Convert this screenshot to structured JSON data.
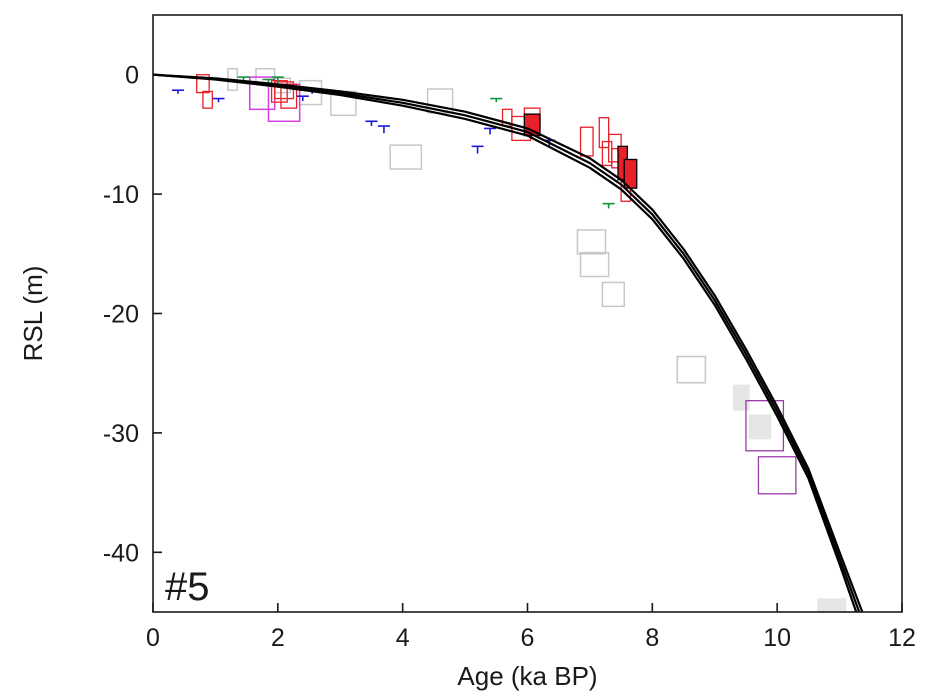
{
  "chart_data": {
    "type": "scatter",
    "panel_label": "#5",
    "xlabel": "Age (ka BP)",
    "ylabel": "RSL (m)",
    "xlim": [
      0,
      12
    ],
    "ylim": [
      -45,
      5
    ],
    "xticks": [
      0,
      2,
      4,
      6,
      8,
      10,
      12
    ],
    "yticks": [
      0,
      -10,
      -20,
      -30,
      -40
    ],
    "grid": false,
    "colors": {
      "model": "#000000",
      "gray": "#c8c8c8",
      "gray_fill": "#e6e6e6",
      "red": "#e8202a",
      "magenta": "#d63fe0",
      "purple": "#9a3aa8",
      "blue": "#1a1ad6",
      "green": "#12963c"
    },
    "model_curves": [
      {
        "x": [
          0,
          1,
          2,
          3,
          4,
          5,
          6,
          7,
          7.5,
          8,
          8.5,
          9,
          9.5,
          10,
          10.5,
          11,
          11.4
        ],
        "y": [
          0,
          -0.3,
          -0.8,
          -1.4,
          -2.1,
          -3.1,
          -4.5,
          -7.0,
          -8.8,
          -11.3,
          -14.6,
          -18.5,
          -23.0,
          -27.8,
          -33.0,
          -40.0,
          -45.5
        ]
      },
      {
        "x": [
          0,
          1,
          2,
          3,
          4,
          5,
          6,
          7,
          7.5,
          8,
          8.5,
          9,
          9.5,
          10,
          10.5,
          11,
          11.35
        ],
        "y": [
          0,
          -0.35,
          -0.9,
          -1.55,
          -2.35,
          -3.4,
          -4.8,
          -7.4,
          -9.2,
          -11.7,
          -15.0,
          -18.9,
          -23.4,
          -28.2,
          -33.4,
          -40.5,
          -45.5
        ]
      },
      {
        "x": [
          0,
          1,
          2,
          3,
          4,
          5,
          6,
          7,
          7.5,
          8,
          8.5,
          9,
          9.5,
          10,
          10.5,
          11,
          11.3
        ],
        "y": [
          0,
          -0.4,
          -1.0,
          -1.7,
          -2.6,
          -3.7,
          -5.1,
          -7.8,
          -9.6,
          -12.1,
          -15.4,
          -19.3,
          -23.8,
          -28.6,
          -33.8,
          -41.0,
          -45.5
        ]
      }
    ],
    "boxes": [
      {
        "group": "gray_open",
        "x0": 1.2,
        "x1": 1.35,
        "y0": -1.3,
        "y1": 0.5
      },
      {
        "group": "gray_open",
        "x0": 1.65,
        "x1": 1.95,
        "y0": -0.8,
        "y1": 0.5
      },
      {
        "group": "gray_open",
        "x0": 1.95,
        "x1": 2.2,
        "y0": -1.5,
        "y1": -0.3
      },
      {
        "group": "gray_open",
        "x0": 2.35,
        "x1": 2.7,
        "y0": -2.5,
        "y1": -0.5
      },
      {
        "group": "gray_open",
        "x0": 2.85,
        "x1": 3.25,
        "y0": -3.4,
        "y1": -1.4
      },
      {
        "group": "gray_open",
        "x0": 3.8,
        "x1": 4.3,
        "y0": -7.9,
        "y1": -5.9
      },
      {
        "group": "gray_open",
        "x0": 4.4,
        "x1": 4.8,
        "y0": -3.2,
        "y1": -1.2
      },
      {
        "group": "gray_open",
        "x0": 6.8,
        "x1": 7.25,
        "y0": -15.0,
        "y1": -13.0
      },
      {
        "group": "gray_open",
        "x0": 6.85,
        "x1": 7.3,
        "y0": -16.9,
        "y1": -14.9
      },
      {
        "group": "gray_open",
        "x0": 7.2,
        "x1": 7.55,
        "y0": -19.4,
        "y1": -17.4
      },
      {
        "group": "gray_open",
        "x0": 8.4,
        "x1": 8.85,
        "y0": -25.8,
        "y1": -23.6
      },
      {
        "group": "gray_filled",
        "x0": 9.3,
        "x1": 9.55,
        "y0": -28.1,
        "y1": -26.0
      },
      {
        "group": "gray_filled",
        "x0": 9.55,
        "x1": 9.9,
        "y0": -30.5,
        "y1": -28.5
      },
      {
        "group": "gray_filled",
        "x0": 10.65,
        "x1": 11.1,
        "y0": -45.0,
        "y1": -43.9
      },
      {
        "group": "red_open",
        "x0": 0.7,
        "x1": 0.9,
        "y0": -1.5,
        "y1": 0.0
      },
      {
        "group": "red_open",
        "x0": 0.8,
        "x1": 0.95,
        "y0": -2.8,
        "y1": -1.4
      },
      {
        "group": "red_open",
        "x0": 1.9,
        "x1": 2.15,
        "y0": -2.3,
        "y1": -0.5
      },
      {
        "group": "red_open",
        "x0": 1.95,
        "x1": 2.25,
        "y0": -2.0,
        "y1": -0.6
      },
      {
        "group": "red_open",
        "x0": 2.05,
        "x1": 2.3,
        "y0": -2.8,
        "y1": -0.8
      },
      {
        "group": "red_open",
        "x0": 5.6,
        "x1": 5.75,
        "y0": -4.3,
        "y1": -2.9
      },
      {
        "group": "red_open",
        "x0": 5.75,
        "x1": 6.05,
        "y0": -5.5,
        "y1": -3.5
      },
      {
        "group": "red_open",
        "x0": 5.95,
        "x1": 6.2,
        "y0": -4.4,
        "y1": -2.8
      },
      {
        "group": "red_open",
        "x0": 6.85,
        "x1": 7.05,
        "y0": -6.8,
        "y1": -4.4
      },
      {
        "group": "red_open",
        "x0": 7.15,
        "x1": 7.3,
        "y0": -6.1,
        "y1": -3.6
      },
      {
        "group": "red_open",
        "x0": 7.2,
        "x1": 7.35,
        "y0": -7.6,
        "y1": -5.6
      },
      {
        "group": "red_open",
        "x0": 7.3,
        "x1": 7.5,
        "y0": -7.3,
        "y1": -5.0
      },
      {
        "group": "red_open",
        "x0": 7.35,
        "x1": 7.55,
        "y0": -7.8,
        "y1": -6.2
      },
      {
        "group": "red_open",
        "x0": 7.5,
        "x1": 7.65,
        "y0": -10.6,
        "y1": -8.8
      },
      {
        "group": "red_filled",
        "x0": 5.95,
        "x1": 6.2,
        "y0": -5.1,
        "y1": -3.3
      },
      {
        "group": "red_filled",
        "x0": 7.45,
        "x1": 7.6,
        "y0": -8.8,
        "y1": -6.0
      },
      {
        "group": "red_filled",
        "x0": 7.55,
        "x1": 7.75,
        "y0": -9.5,
        "y1": -7.1
      },
      {
        "group": "magenta_open",
        "x0": 1.55,
        "x1": 1.95,
        "y0": -2.9,
        "y1": -0.2
      },
      {
        "group": "magenta_open",
        "x0": 1.85,
        "x1": 2.35,
        "y0": -3.9,
        "y1": -0.8
      },
      {
        "group": "purple_open",
        "x0": 9.5,
        "x1": 10.1,
        "y0": -31.5,
        "y1": -27.3
      },
      {
        "group": "purple_open",
        "x0": 9.7,
        "x1": 10.3,
        "y0": -35.1,
        "y1": -32.0
      }
    ],
    "markers": [
      {
        "group": "blue",
        "x": 0.4,
        "y": -1.3,
        "h": 0.3
      },
      {
        "group": "blue",
        "x": 1.05,
        "y": -2.0,
        "h": 0.3
      },
      {
        "group": "blue",
        "x": 2.4,
        "y": -1.8,
        "h": 0.4
      },
      {
        "group": "blue",
        "x": 2.55,
        "y": -1.3,
        "h": 0.3
      },
      {
        "group": "blue",
        "x": 3.5,
        "y": -3.9,
        "h": 0.4
      },
      {
        "group": "blue",
        "x": 3.7,
        "y": -4.3,
        "h": 0.6
      },
      {
        "group": "blue",
        "x": 5.2,
        "y": -6.0,
        "h": 0.6
      },
      {
        "group": "blue",
        "x": 5.4,
        "y": -4.5,
        "h": 0.5
      },
      {
        "group": "blue",
        "x": 6.35,
        "y": -5.5,
        "h": 0.6
      },
      {
        "group": "green",
        "x": 1.45,
        "y": -0.2,
        "h": 0.4
      },
      {
        "group": "green",
        "x": 1.85,
        "y": -0.4,
        "h": 0.3
      },
      {
        "group": "green",
        "x": 2.0,
        "y": -0.2,
        "h": 0.5
      },
      {
        "group": "green",
        "x": 5.5,
        "y": -2.0,
        "h": 0.3
      },
      {
        "group": "green",
        "x": 7.3,
        "y": -10.8,
        "h": 0.4
      }
    ]
  }
}
